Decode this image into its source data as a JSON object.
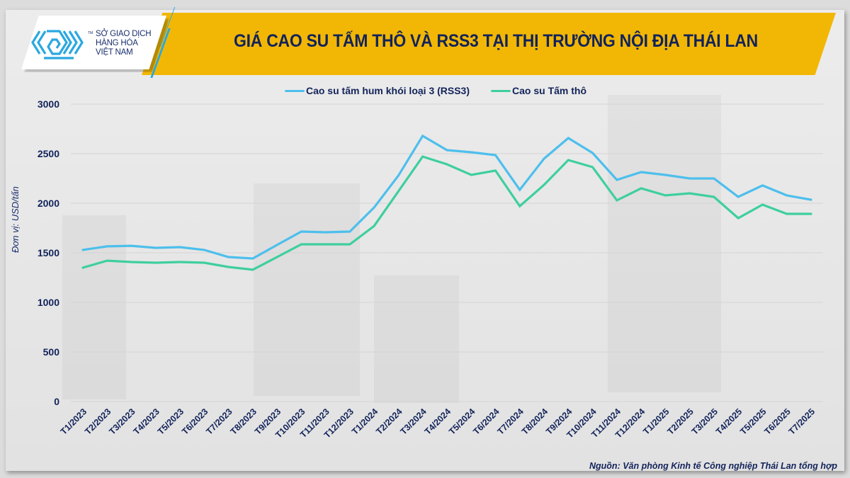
{
  "logo": {
    "line1": "SỞ GIAO DỊCH",
    "line2": "HÀNG HÓA",
    "line3": "VIỆT NAM",
    "tm": "TM"
  },
  "header": {
    "title": "GIÁ CAO SU TẤM THÔ VÀ RSS3 TẠI THỊ TRƯỜNG NỘI ĐỊA THÁI LAN"
  },
  "legend": {
    "items": [
      {
        "label": "Cao su tấm hum khói loại 3 (RSS3)",
        "color": "#4dbfec"
      },
      {
        "label": "Cao su Tấm thô",
        "color": "#3ecf9e"
      }
    ]
  },
  "axis": {
    "y_label": "Đơn vị: USD/tấn",
    "y_ticks": [
      "0",
      "500",
      "1000",
      "1500",
      "2000",
      "2500",
      "3000"
    ]
  },
  "footer": {
    "source": "Nguồn: Văn phòng Kinh tế Công nghiệp Thái Lan tổng hợp"
  },
  "colors": {
    "banner": "#f2b705",
    "title_text": "#12235a",
    "rss3": "#4dbfec",
    "tam_tho": "#3ecf9e",
    "grid": "#d4d4d4"
  },
  "chart_data": {
    "type": "line",
    "title": "GIÁ CAO SU TẤM THÔ VÀ RSS3 TẠI THỊ TRƯỜNG NỘI ĐỊA THÁI LAN",
    "xlabel": "",
    "ylabel": "Đơn vị: USD/tấn",
    "ylim": [
      0,
      3000
    ],
    "y_ticks": [
      0,
      500,
      1000,
      1500,
      2000,
      2500,
      3000
    ],
    "grid": true,
    "legend_position": "top",
    "categories": [
      "T1/2023",
      "T2/2023",
      "T3/2023",
      "T4/2023",
      "T5/2023",
      "T6/2023",
      "T7/2023",
      "T8/2023",
      "T9/2023",
      "T10/2023",
      "T11/2023",
      "T12/2023",
      "T1/2024",
      "T2/2024",
      "T3/2024",
      "T4/2024",
      "T5/2024",
      "T6/2024",
      "T7/2024",
      "T8/2024",
      "T9/2024",
      "T10/2024",
      "T11/2024",
      "T12/2024",
      "T1/2025",
      "T2/2025",
      "T3/2025",
      "T4/2025",
      "T5/2025",
      "T6/2025",
      "T7/2025"
    ],
    "series": [
      {
        "name": "Cao su tấm hum khói loại 3 (RSS3)",
        "color": "#4dbfec",
        "values": [
          1529,
          1565,
          1571,
          1550,
          1557,
          1529,
          1457,
          1443,
          1579,
          1714,
          1707,
          1714,
          1957,
          2279,
          2679,
          2536,
          2514,
          2486,
          2136,
          2450,
          2657,
          2507,
          2236,
          2314,
          2286,
          2250,
          2250,
          2064,
          2179,
          2079,
          2036
        ]
      },
      {
        "name": "Cao su Tấm thô",
        "color": "#3ecf9e",
        "values": [
          1350,
          1421,
          1407,
          1400,
          1407,
          1400,
          1357,
          1329,
          1457,
          1586,
          1586,
          1586,
          1771,
          2121,
          2471,
          2393,
          2286,
          2329,
          1971,
          2186,
          2436,
          2364,
          2029,
          2150,
          2079,
          2100,
          2064,
          1850,
          1986,
          1893,
          1893
        ]
      }
    ],
    "source": "Nguồn: Văn phòng Kinh tế Công nghiệp Thái Lan tổng hợp"
  }
}
